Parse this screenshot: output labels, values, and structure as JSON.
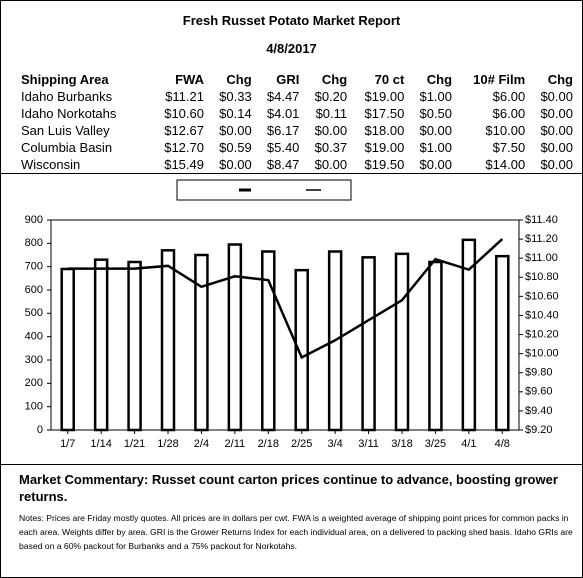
{
  "header": {
    "title": "Fresh Russet Potato Market Report",
    "date": "4/8/2017"
  },
  "table": {
    "columns": [
      "Shipping Area",
      "FWA",
      "Chg",
      "GRI",
      "Chg",
      "70 ct",
      "Chg",
      "10# Film",
      "Chg"
    ],
    "rows": [
      [
        "Idaho Burbanks",
        "$11.21",
        "$0.33",
        "$4.47",
        "$0.20",
        "$19.00",
        "$1.00",
        "$6.00",
        "$0.00"
      ],
      [
        "Idaho Norkotahs",
        "$10.60",
        "$0.14",
        "$4.01",
        "$0.11",
        "$17.50",
        "$0.50",
        "$6.00",
        "$0.00"
      ],
      [
        "San Luis Valley",
        "$12.67",
        "$0.00",
        "$6.17",
        "$0.00",
        "$18.00",
        "$0.00",
        "$10.00",
        "$0.00"
      ],
      [
        "Columbia Basin",
        "$12.70",
        "$0.59",
        "$5.40",
        "$0.37",
        "$19.00",
        "$1.00",
        "$7.50",
        "$0.00"
      ],
      [
        "Wisconsin",
        "$15.49",
        "$0.00",
        "$8.47",
        "$0.00",
        "$19.50",
        "$0.00",
        "$14.00",
        "$0.00"
      ]
    ]
  },
  "chart_data": {
    "type": "bar",
    "categories": [
      "1/7",
      "1/14",
      "1/21",
      "1/28",
      "2/4",
      "2/11",
      "2/18",
      "2/25",
      "3/4",
      "3/11",
      "3/18",
      "3/25",
      "4/1",
      "4/8"
    ],
    "series": [
      {
        "type": "bar",
        "color": "#000000",
        "values": [
          690,
          730,
          720,
          770,
          750,
          795,
          765,
          685,
          765,
          740,
          755,
          720,
          815,
          745
        ]
      },
      {
        "type": "line",
        "axis": "y2",
        "color": "#000000",
        "values": [
          10.89,
          10.89,
          10.89,
          10.92,
          10.7,
          10.81,
          10.77,
          9.96,
          10.14,
          10.35,
          10.56,
          10.99,
          10.88,
          11.2
        ]
      }
    ],
    "ylim": [
      0,
      900
    ],
    "yticks": [
      0,
      100,
      200,
      300,
      400,
      500,
      600,
      700,
      800,
      900
    ],
    "y2lim": [
      9.2,
      11.4
    ],
    "y2ticks": [
      {
        "value": 9.2,
        "label": "$9.20"
      },
      {
        "value": 9.4,
        "label": "$9.40"
      },
      {
        "value": 9.6,
        "label": "$9.60"
      },
      {
        "value": 9.8,
        "label": "$9.80"
      },
      {
        "value": 10.0,
        "label": "$10.00"
      },
      {
        "value": 10.2,
        "label": "$10.20"
      },
      {
        "value": 10.4,
        "label": "$10.40"
      },
      {
        "value": 10.6,
        "label": "$10.60"
      },
      {
        "value": 10.8,
        "label": "$10.80"
      },
      {
        "value": 11.0,
        "label": "$11.00"
      },
      {
        "value": 11.2,
        "label": "$11.20"
      },
      {
        "value": 11.4,
        "label": "$11.40"
      }
    ]
  },
  "commentary": "Market Commentary: Russet count carton prices continue to advance, boosting grower returns.",
  "notes": "Notes: Prices are Friday mostly quotes. All prices are in dollars per cwt. FWA is a weighted average of shipping point prices for  common packs in each area. Weights differ by area. GRI is the Grower Returns Index for each individual area, on a delivered to packing shed basis. Idaho GRIs are based on a 60% packout for Burbanks and a 75% packout for Norkotahs."
}
